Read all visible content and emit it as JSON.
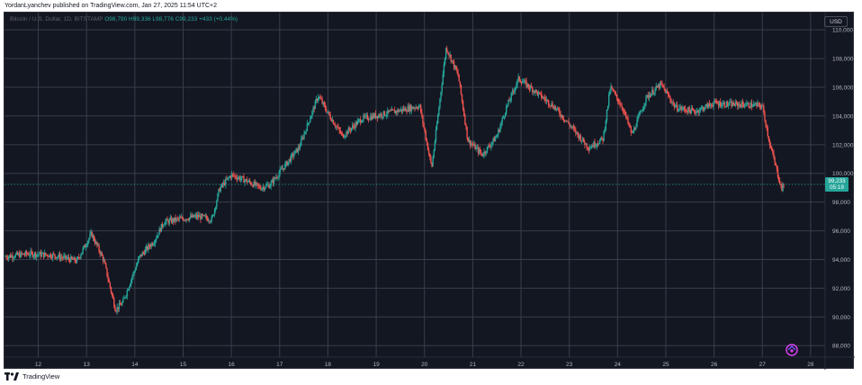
{
  "publisher_line": "YordanLyanchev published on TradingView.com, Jan 27, 2025 11:54 UTC+2",
  "symbol": {
    "name": "Bitcoin / U.S. Dollar, 1D, BITSTAMP",
    "open": "O98,790",
    "high": "H99,336",
    "low": "L98,776",
    "close": "C99,233",
    "change": "+433 (+0.44%)"
  },
  "currency_button": "USD",
  "last_price_label": "99,233",
  "countdown_label": "05:19",
  "brand_label": "TradingView",
  "colors": {
    "up": "#26a69a",
    "down": "#ef5350",
    "background": "#131722",
    "grid": "#3a3e4a"
  },
  "icons": [
    "tradingview-logo-icon",
    "snapshot-icon"
  ],
  "chart_data": {
    "type": "candlestick",
    "y_axis": {
      "ylim": [
        87200,
        111200
      ],
      "ticks": [
        "110,000",
        "108,000",
        "106,000",
        "104,000",
        "102,000",
        "100,000",
        "98,000",
        "96,000",
        "94,000",
        "92,000",
        "90,000",
        "88,000"
      ],
      "tick_values": [
        110000,
        108000,
        106000,
        104000,
        102000,
        100000,
        98000,
        96000,
        94000,
        92000,
        90000,
        88000
      ]
    },
    "x_axis": {
      "xlim": [
        11.3,
        28.3
      ],
      "ticks": [
        "12",
        "13",
        "14",
        "15",
        "16",
        "17",
        "18",
        "19",
        "20",
        "21",
        "22",
        "23",
        "24",
        "25",
        "26",
        "27",
        "28"
      ],
      "tick_values": [
        12,
        13,
        14,
        15,
        16,
        17,
        18,
        19,
        20,
        21,
        22,
        23,
        24,
        25,
        26,
        27,
        28
      ]
    },
    "grid": true,
    "last_price": 99233,
    "price_path": [
      [
        11.3,
        94200
      ],
      [
        11.8,
        94400
      ],
      [
        12.3,
        94300
      ],
      [
        12.8,
        93900
      ],
      [
        13.1,
        95800
      ],
      [
        13.35,
        94000
      ],
      [
        13.6,
        90500
      ],
      [
        13.75,
        91000
      ],
      [
        13.9,
        92400
      ],
      [
        14.1,
        94200
      ],
      [
        14.4,
        95300
      ],
      [
        14.6,
        96600
      ],
      [
        14.9,
        96800
      ],
      [
        15.3,
        97000
      ],
      [
        15.6,
        96800
      ],
      [
        15.75,
        98900
      ],
      [
        16.0,
        99900
      ],
      [
        16.3,
        99500
      ],
      [
        16.6,
        99000
      ],
      [
        16.8,
        99200
      ],
      [
        17.1,
        100500
      ],
      [
        17.4,
        101800
      ],
      [
        17.8,
        105400
      ],
      [
        18.0,
        104200
      ],
      [
        18.3,
        102600
      ],
      [
        18.7,
        103800
      ],
      [
        19.1,
        104100
      ],
      [
        19.5,
        104400
      ],
      [
        19.9,
        104700
      ],
      [
        20.15,
        100400
      ],
      [
        20.45,
        108800
      ],
      [
        20.7,
        106800
      ],
      [
        20.9,
        102300
      ],
      [
        21.2,
        101300
      ],
      [
        21.5,
        102600
      ],
      [
        21.7,
        104600
      ],
      [
        21.95,
        106600
      ],
      [
        22.3,
        105700
      ],
      [
        22.7,
        104600
      ],
      [
        23.0,
        103400
      ],
      [
        23.4,
        101800
      ],
      [
        23.7,
        102400
      ],
      [
        23.85,
        106000
      ],
      [
        24.1,
        104600
      ],
      [
        24.3,
        102700
      ],
      [
        24.6,
        105300
      ],
      [
        24.9,
        106200
      ],
      [
        25.2,
        104600
      ],
      [
        25.6,
        104300
      ],
      [
        26.0,
        104900
      ],
      [
        26.3,
        104800
      ],
      [
        26.6,
        104800
      ],
      [
        27.0,
        104700
      ],
      [
        27.15,
        102100
      ],
      [
        27.4,
        98900
      ],
      [
        27.45,
        99233
      ]
    ]
  }
}
